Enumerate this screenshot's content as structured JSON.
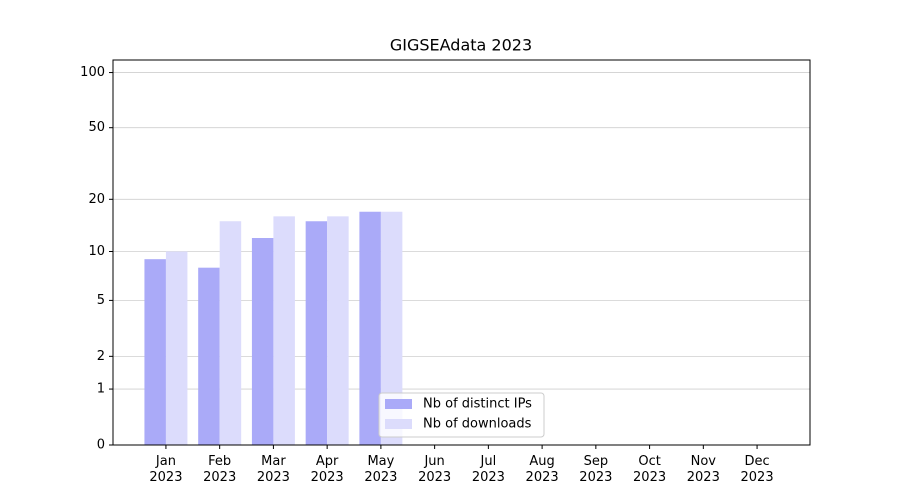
{
  "chart_data": {
    "type": "bar",
    "title": "GIGSEAdata 2023",
    "categories": [
      "Jan\n2023",
      "Feb\n2023",
      "Mar\n2023",
      "Apr\n2023",
      "May\n2023",
      "Jun\n2023",
      "Jul\n2023",
      "Aug\n2023",
      "Sep\n2023",
      "Oct\n2023",
      "Nov\n2023",
      "Dec\n2023"
    ],
    "series": [
      {
        "name": "Nb of distinct IPs",
        "color": "#aaaaf8",
        "values": [
          9,
          8,
          12,
          15,
          17,
          null,
          null,
          null,
          null,
          null,
          null,
          null
        ]
      },
      {
        "name": "Nb of downloads",
        "color": "#dcdcfc",
        "values": [
          10,
          15,
          16,
          16,
          17,
          null,
          null,
          null,
          null,
          null,
          null,
          null
        ]
      }
    ],
    "yscale": "log1p",
    "ylim": [
      0,
      117
    ],
    "yticks": [
      0,
      1,
      2,
      5,
      10,
      20,
      50,
      100
    ],
    "grid": true,
    "legend": "lower center"
  }
}
